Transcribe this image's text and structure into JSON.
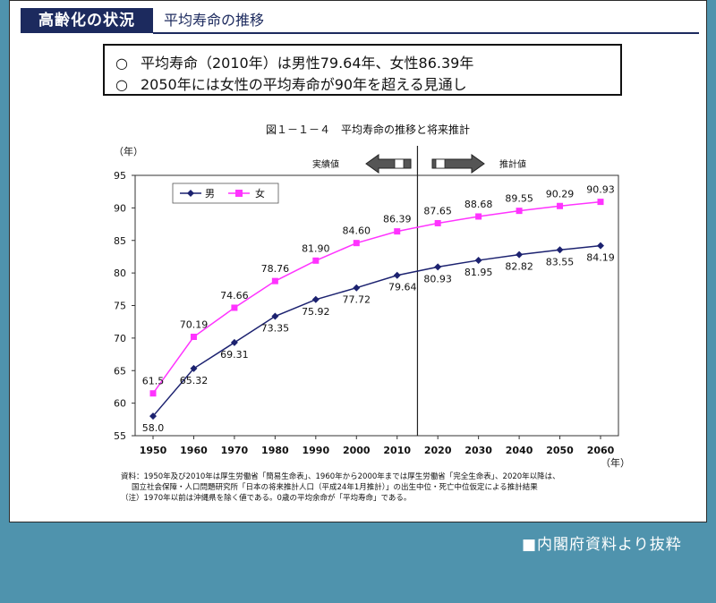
{
  "header": {
    "title": "高齢化の状況",
    "subtitle": "平均寿命の推移"
  },
  "summary": {
    "bullet": "○",
    "lines": [
      "平均寿命（2010年）は男性79.64年、女性86.39年",
      "2050年には女性の平均寿命が90年を超える見通し"
    ]
  },
  "source_note": "■内閣府資料より抜粋",
  "colors": {
    "male": "#1c2270",
    "female": "#ff33ff",
    "heading_bg": "#1c2a5e",
    "page_bg": "#4f93ad"
  },
  "chart_data": {
    "type": "line",
    "title": "図１－１－４　平均寿命の推移と将来推計",
    "ylabel": "（年）",
    "xlabel": "（年）",
    "ylim": [
      55,
      95
    ],
    "yticks": [
      55,
      60,
      65,
      70,
      75,
      80,
      85,
      90,
      95
    ],
    "categories": [
      "1950",
      "1960",
      "1970",
      "1980",
      "1990",
      "2000",
      "2010",
      "2020",
      "2030",
      "2040",
      "2050",
      "2060"
    ],
    "series": [
      {
        "name": "男",
        "values": [
          58.0,
          65.32,
          69.31,
          73.35,
          75.92,
          77.72,
          79.64,
          80.93,
          81.95,
          82.82,
          83.55,
          84.19
        ],
        "labels": [
          "58.0",
          "65.32",
          "69.31",
          "73.35",
          "75.92",
          "77.72",
          "79.64",
          "80.93",
          "81.95",
          "82.82",
          "83.55",
          "84.19"
        ]
      },
      {
        "name": "女",
        "values": [
          61.5,
          70.19,
          74.66,
          78.76,
          81.9,
          84.6,
          86.39,
          87.65,
          88.68,
          89.55,
          90.29,
          90.93
        ],
        "labels": [
          "61.5",
          "70.19",
          "74.66",
          "78.76",
          "81.90",
          "84.60",
          "86.39",
          "87.65",
          "88.68",
          "89.55",
          "90.29",
          "90.93"
        ]
      }
    ],
    "legend_position": "top-left",
    "grid": false,
    "annotations": {
      "actual_label": "実績値",
      "forecast_label": "推計値",
      "divider_between": [
        "2010",
        "2020"
      ]
    },
    "notes": [
      "資料：1950年及び2010年は厚生労働省「簡易生命表」、1960年から2000年までは厚生労働省「完全生命表」、2020年以降は、",
      "国立社会保障・人口問題研究所「日本の将来推計人口（平成24年1月推計）」の出生中位・死亡中位仮定による推計結果",
      "（注）1970年以前は沖縄県を除く値である。0歳の平均余命が「平均寿命」である。"
    ]
  }
}
